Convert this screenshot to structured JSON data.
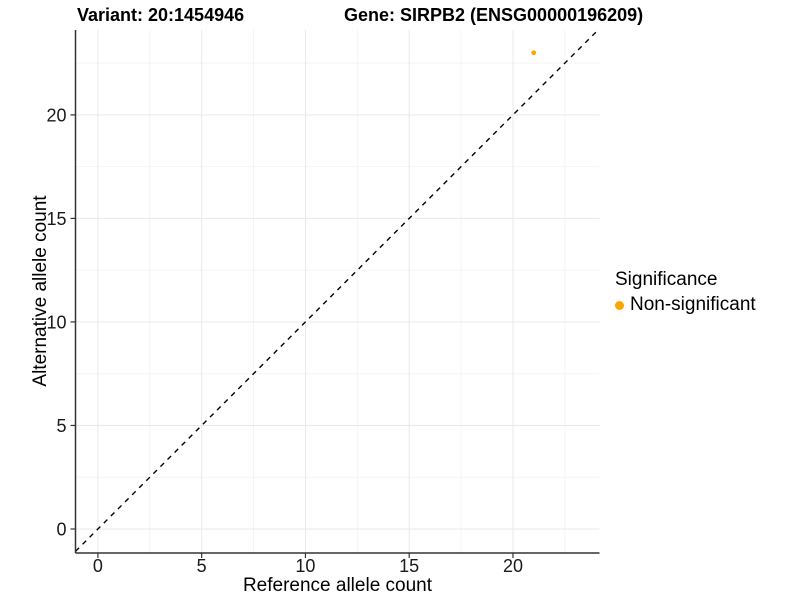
{
  "titles": {
    "variant": "Variant: 20:1454946",
    "gene": "Gene: SIRPB2 (ENSG00000196209)"
  },
  "legend": {
    "title": "Significance",
    "items": [
      {
        "label": "Non-significant",
        "color": "#FFA500"
      }
    ]
  },
  "colors": {
    "point": "#FFA500",
    "axis_line": "#333333",
    "tick_text": "#1a1a1a",
    "grid_major": "#e9e9e9",
    "grid_minor": "#f4f4f4",
    "reference_line": "#000000"
  },
  "chart_data": {
    "type": "scatter",
    "title": "Variant: 20:1454946 | Gene: SIRPB2 (ENSG00000196209)",
    "xlabel": "Reference allele count",
    "ylabel": "Alternative allele count",
    "xticks": [
      0,
      5,
      10,
      15,
      20
    ],
    "yticks": [
      0,
      5,
      10,
      15,
      20
    ],
    "minor_xticks": [
      2.5,
      7.5,
      12.5,
      17.5,
      22.5
    ],
    "minor_yticks": [
      2.5,
      7.5,
      12.5,
      17.5,
      22.5
    ],
    "xlim": [
      -1.08,
      24.17
    ],
    "ylim": [
      -1.16,
      24.1
    ],
    "grid": true,
    "legend_position": "right",
    "series": [
      {
        "name": "Non-significant",
        "color": "#FFA500",
        "points": [
          {
            "x": 21,
            "y": 23
          }
        ]
      }
    ],
    "reference_line": {
      "type": "identity",
      "slope": 1,
      "intercept": 0,
      "style": "dashed"
    }
  }
}
